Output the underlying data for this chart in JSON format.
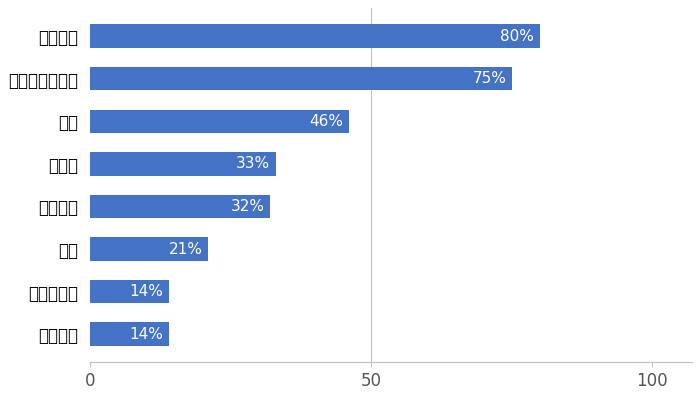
{
  "categories": [
    "火山噴火",
    "大雪・雪崩",
    "津波",
    "土砂災害",
    "液状化",
    "洪水",
    "台風・大雨被害",
    "巨大地震"
  ],
  "values": [
    14,
    14,
    21,
    32,
    33,
    46,
    75,
    80
  ],
  "labels": [
    "14%",
    "14%",
    "21%",
    "32%",
    "33%",
    "46%",
    "75%",
    "80%"
  ],
  "bar_color": "#4472C4",
  "background_color": "#ffffff",
  "xlim": [
    0,
    107
  ],
  "xticks": [
    0,
    50,
    100
  ],
  "bar_height": 0.55,
  "label_fontsize": 11,
  "tick_fontsize": 12,
  "text_color_inside": "#ffffff",
  "gridline_color": "#c0c0c0",
  "spine_color": "#c0c0c0"
}
